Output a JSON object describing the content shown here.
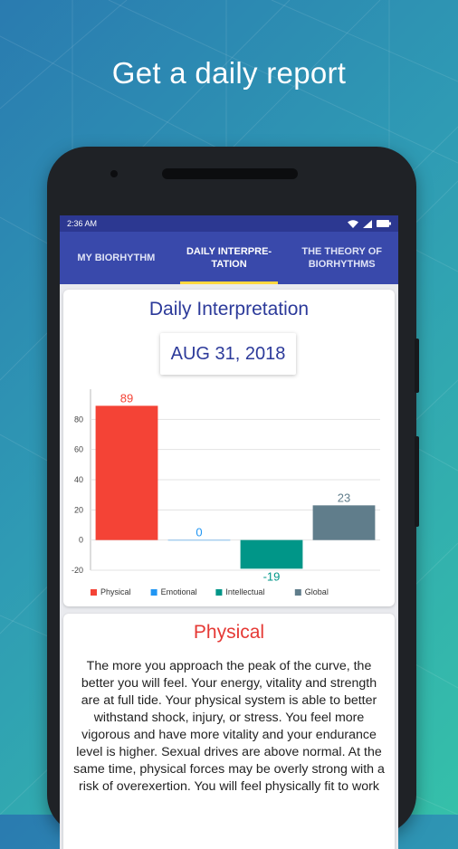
{
  "headline": "Get a daily report",
  "status_bar": {
    "time": "2:36 AM",
    "icons": [
      "wifi-icon",
      "signal-icon",
      "battery-icon"
    ]
  },
  "tabs": [
    {
      "label": "MY BIORHYTHM",
      "active": false
    },
    {
      "label": "DAILY INTERPRE-\nTATION",
      "active": true
    },
    {
      "label": "THE THEORY OF\nBIORHYTHMS",
      "active": false
    }
  ],
  "daily": {
    "title": "Daily Interpretation",
    "date": "AUG 31, 2018"
  },
  "chart_data": {
    "type": "bar",
    "categories": [
      "Physical",
      "Emotional",
      "Intellectual",
      "Global"
    ],
    "values": [
      89,
      0,
      -19,
      23
    ],
    "value_labels": [
      "89",
      "0",
      "-19",
      "23"
    ],
    "colors": [
      "#f44336",
      "#2196f3",
      "#009688",
      "#607d8b"
    ],
    "label_colors": [
      "#f44336",
      "#2196f3",
      "#009688",
      "#607d8b"
    ],
    "yticks": [
      "-20",
      "0",
      "20",
      "40",
      "60",
      "80"
    ],
    "ylim": [
      -20,
      100
    ],
    "grid": true,
    "legend": "bottom-left"
  },
  "physical": {
    "title": "Physical",
    "text": "The more you approach the peak of the curve, the better you will feel. Your energy, vitality and strength are at full tide. Your physical system is able to better withstand shock, injury, or stress. You feel more vigorous and have more vitality and your endurance level is higher. Sexual drives are above normal. At the same time, physical forces may be overly strong with a risk of overexertion. You will feel physically fit to work"
  }
}
